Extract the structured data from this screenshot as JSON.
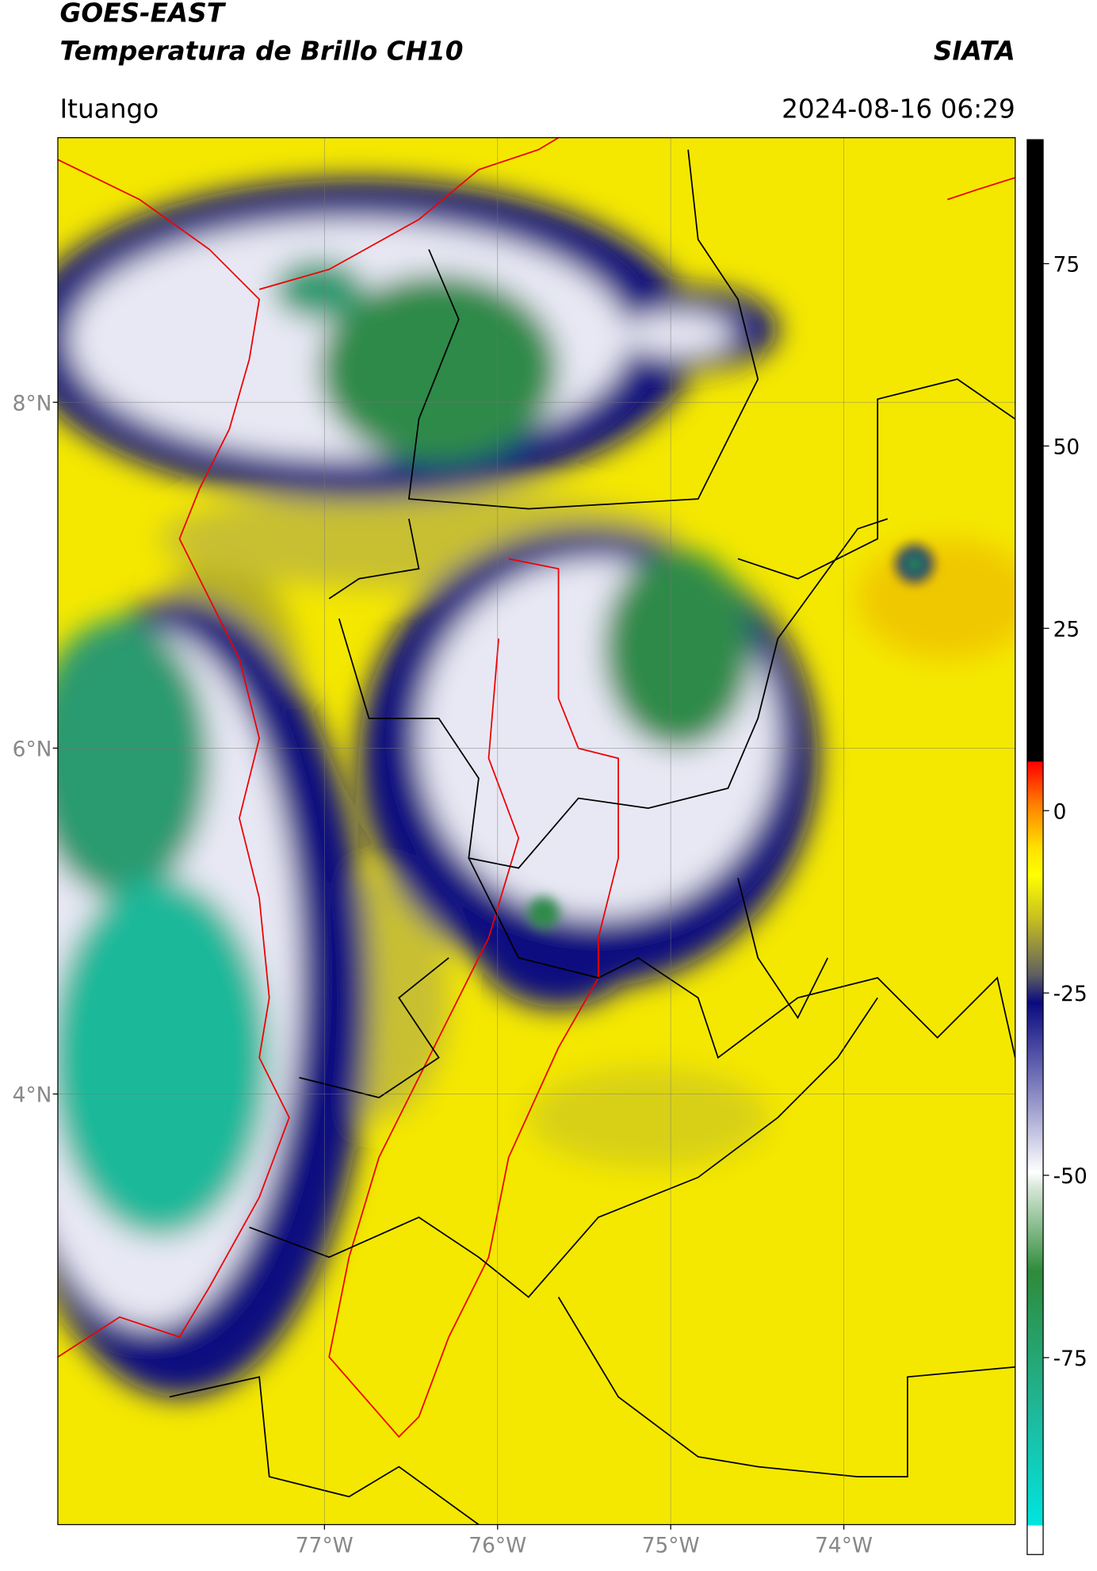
{
  "header": {
    "satellite": "GOES-EAST",
    "product": "Temperatura de Brillo CH10",
    "org": "SIATA",
    "location": "Ituango",
    "datetime": "2024-08-16 06:29"
  },
  "map": {
    "latlim": [
      1.51,
      9.53
    ],
    "lonlim": [
      -78.54,
      -73.01
    ],
    "grid": true,
    "lat_ticks": [
      {
        "value": 8,
        "label": "8°N"
      },
      {
        "value": 6,
        "label": "6°N"
      },
      {
        "value": 4,
        "label": "4°N"
      }
    ],
    "lon_ticks": [
      {
        "value": -77,
        "label": "77°W"
      },
      {
        "value": -76,
        "label": "76°W"
      },
      {
        "value": -75,
        "label": "75°W"
      },
      {
        "value": -74,
        "label": "74°W"
      }
    ]
  },
  "colorbar": {
    "lim": [
      -102,
      92
    ],
    "ticks": [
      75,
      50,
      25,
      0,
      -25,
      -50,
      -75
    ]
  }
}
